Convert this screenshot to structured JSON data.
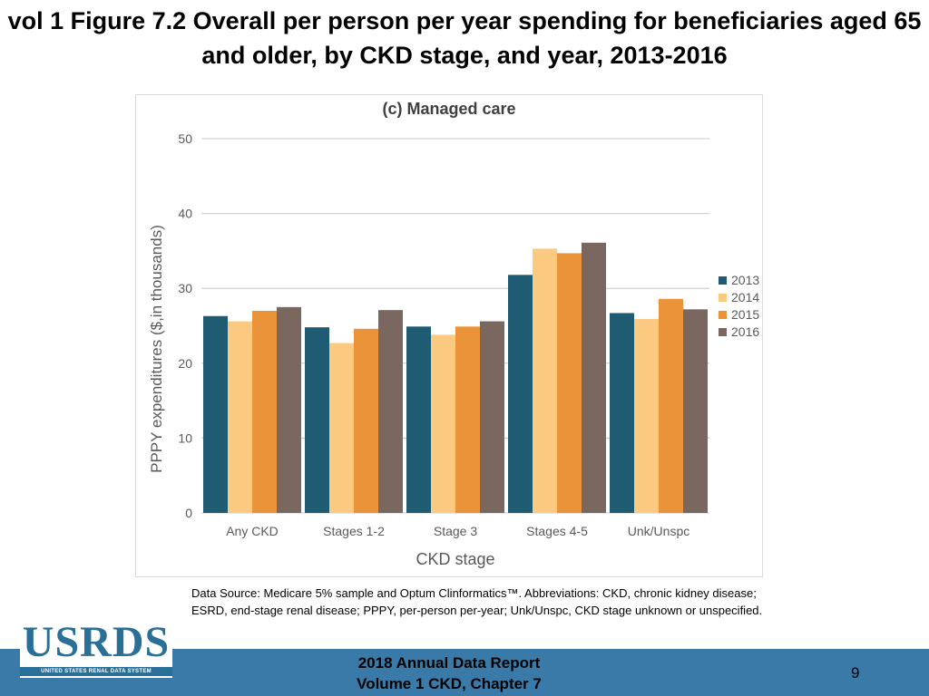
{
  "slide": {
    "title": "vol 1 Figure 7.2 Overall per person per year spending for beneficiaries aged 65 and older, by CKD stage, and year, 2013-2016",
    "footnote": "Data Source: Medicare 5% sample and Optum Clinformatics™. Abbreviations: CKD, chronic kidney disease; ESRD, end-stage renal disease; PPPY, per-person per-year; Unk/Unspc, CKD stage unknown or unspecified.",
    "logo_text": "USRDS",
    "logo_subtext": "UNITED STATES RENAL DATA SYSTEM",
    "footer_line1": "2018 Annual Data Report",
    "footer_line2": "Volume 1 CKD, Chapter 7",
    "page_number": "9"
  },
  "colors": {
    "s2013": "#1f5c73",
    "s2014": "#fbc97f",
    "s2015": "#ea9339",
    "s2016": "#7a6860",
    "grid": "#c8c8c8",
    "axis_text": "#595959",
    "footer_bar": "#3a7aa8",
    "logo": "#2a6f97"
  },
  "chart_data": {
    "type": "bar",
    "title": "(c) Managed care",
    "xlabel": "CKD stage",
    "ylabel": "PPPY expenditures ($,in thousands)",
    "ylim": [
      0,
      50
    ],
    "yticks": [
      0,
      10,
      20,
      30,
      40,
      50
    ],
    "grid": true,
    "legend_position": "right",
    "categories": [
      "Any CKD",
      "Stages 1-2",
      "Stage 3",
      "Stages 4-5",
      "Unk/Unspc"
    ],
    "series": [
      {
        "name": "2013",
        "color_key": "s2013",
        "values": [
          26.3,
          24.8,
          24.9,
          31.8,
          26.7
        ]
      },
      {
        "name": "2014",
        "color_key": "s2014",
        "values": [
          25.6,
          22.7,
          23.8,
          35.3,
          25.9
        ]
      },
      {
        "name": "2015",
        "color_key": "s2015",
        "values": [
          27.0,
          24.6,
          24.9,
          34.7,
          28.6
        ]
      },
      {
        "name": "2016",
        "color_key": "s2016",
        "values": [
          27.5,
          27.1,
          25.6,
          36.1,
          27.2
        ]
      }
    ]
  }
}
